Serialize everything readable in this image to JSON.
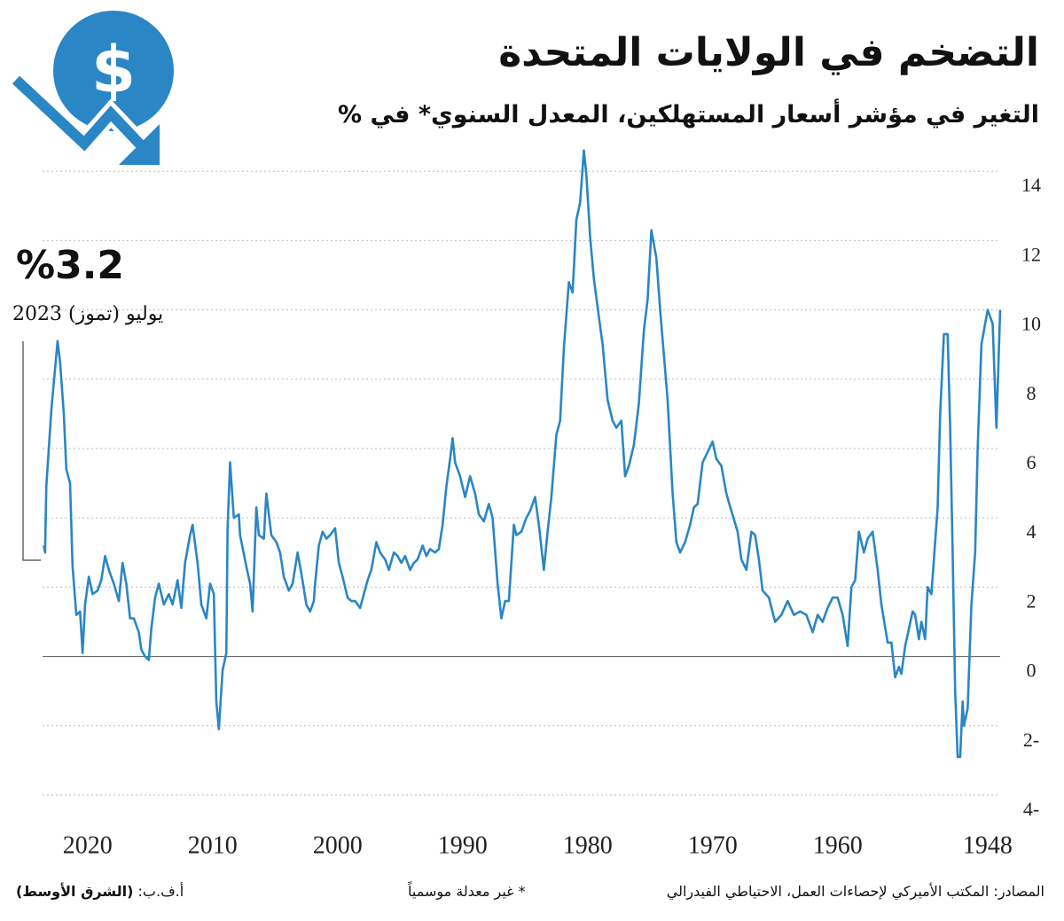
{
  "chart_data": {
    "type": "line",
    "title": "التضخم في الولايات المتحدة",
    "subtitle": "التغير في مؤشر أسعار المستهلكين، المعدل السنوي* في %",
    "icon": {
      "symbol": "$"
    },
    "annotation": {
      "value_text": "%3.2",
      "date_text": "يوليو (تموز) 2023"
    },
    "footer": {
      "sources": "المصادر: المكتب الأميركي لإحصاءات العمل، الاحتياطي الفيدرالي",
      "note": "* غير معدلة موسمياً",
      "credit": "أ.ف.ب:",
      "outlet": "(الشرق الأوسط)"
    },
    "x": [
      1947.0,
      1947.3,
      1947.6,
      1948.0,
      1948.5,
      1948.8,
      1949.0,
      1949.3,
      1949.6,
      1949.9,
      1950.0,
      1950.2,
      1950.4,
      1950.6,
      1950.8,
      1951.0,
      1951.2,
      1951.5,
      1951.8,
      1952.0,
      1952.5,
      1952.8,
      1953.0,
      1953.3,
      1953.5,
      1953.8,
      1954.0,
      1954.3,
      1954.6,
      1954.9,
      1955.1,
      1955.4,
      1955.7,
      1956.0,
      1956.5,
      1956.8,
      1957.2,
      1957.6,
      1957.9,
      1958.3,
      1958.6,
      1958.9,
      1959.2,
      1959.6,
      1960.0,
      1960.4,
      1960.8,
      1961.2,
      1961.6,
      1962.0,
      1962.5,
      1963.0,
      1963.5,
      1964.0,
      1964.5,
      1965.0,
      1965.5,
      1966.0,
      1966.3,
      1966.6,
      1966.9,
      1967.3,
      1967.7,
      1968.0,
      1968.5,
      1968.9,
      1969.3,
      1969.7,
      1970.0,
      1970.4,
      1970.8,
      1971.2,
      1971.5,
      1971.8,
      1972.2,
      1972.6,
      1972.9,
      1973.2,
      1973.6,
      1973.9,
      1974.2,
      1974.5,
      1974.9,
      1975.2,
      1975.5,
      1975.9,
      1976.3,
      1976.7,
      1977.0,
      1977.3,
      1977.7,
      1978.0,
      1978.4,
      1978.8,
      1979.1,
      1979.5,
      1979.8,
      1980.1,
      1980.3,
      1980.6,
      1980.9,
      1981.2,
      1981.5,
      1981.9,
      1982.2,
      1982.5,
      1982.9,
      1983.2,
      1983.5,
      1983.9,
      1984.2,
      1984.6,
      1984.9,
      1985.3,
      1985.7,
      1985.9,
      1986.3,
      1986.6,
      1986.9,
      1987.2,
      1987.6,
      1987.9,
      1988.3,
      1988.7,
      1989.0,
      1989.4,
      1989.8,
      1990.2,
      1990.6,
      1990.8,
      1991.0,
      1991.3,
      1991.6,
      1991.9,
      1992.2,
      1992.6,
      1992.9,
      1993.2,
      1993.6,
      1993.9,
      1994.2,
      1994.6,
      1994.9,
      1995.2,
      1995.5,
      1995.9,
      1996.2,
      1996.6,
      1996.9,
      1997.3,
      1997.6,
      1997.9,
      1998.2,
      1998.6,
      1998.9,
      1999.2,
      1999.6,
      1999.9,
      2000.2,
      2000.6,
      2000.9,
      2001.2,
      2001.5,
      2001.8,
      2001.9,
      2002.2,
      2002.5,
      2002.9,
      2003.2,
      2003.6,
      2003.9,
      2004.3,
      2004.6,
      2004.9,
      2005.3,
      2005.7,
      2005.9,
      2006.3,
      2006.5,
      2006.8,
      2007.0,
      2007.3,
      2007.8,
      2007.9,
      2008.3,
      2008.6,
      2008.8,
      2008.9,
      2009.2,
      2009.5,
      2009.7,
      2009.9,
      2010.2,
      2010.5,
      2010.9,
      2011.2,
      2011.6,
      2011.8,
      2012.2,
      2012.5,
      2012.8,
      2013.2,
      2013.5,
      2013.9,
      2014.3,
      2014.6,
      2014.9,
      2015.1,
      2015.4,
      2015.7,
      2015.9,
      2016.3,
      2016.6,
      2016.9,
      2017.2,
      2017.5,
      2017.9,
      2018.3,
      2018.6,
      2018.9,
      2019.2,
      2019.6,
      2019.9,
      2020.2,
      2020.4,
      2020.6,
      2020.9,
      2021.2,
      2021.4,
      2021.7,
      2021.9,
      2022.2,
      2022.4,
      2022.6,
      2022.9,
      2023.1,
      2023.3,
      2023.4,
      2023.5
    ],
    "series": [
      {
        "color": "#2a86c4",
        "values": [
          10.0,
          6.6,
          9.6,
          10.0,
          9.0,
          6.0,
          3.0,
          1.5,
          -1.5,
          -2.0,
          -1.3,
          -2.9,
          -2.9,
          -1.0,
          3.0,
          6.6,
          9.3,
          9.3,
          7.0,
          4.3,
          1.8,
          2.0,
          0.5,
          1.0,
          0.5,
          1.2,
          1.3,
          0.8,
          0.3,
          -0.5,
          -0.3,
          -0.6,
          0.4,
          0.4,
          1.5,
          2.5,
          3.6,
          3.4,
          3.0,
          3.6,
          2.2,
          2.0,
          0.3,
          1.2,
          1.7,
          1.7,
          1.4,
          1.0,
          1.2,
          0.7,
          1.2,
          1.3,
          1.2,
          1.6,
          1.2,
          1.0,
          1.7,
          1.9,
          2.8,
          3.5,
          3.6,
          2.5,
          2.8,
          3.6,
          4.2,
          4.7,
          5.5,
          5.7,
          6.2,
          5.9,
          5.6,
          4.4,
          4.3,
          3.8,
          3.3,
          3.0,
          3.3,
          4.7,
          7.4,
          8.7,
          10.0,
          11.5,
          12.3,
          10.3,
          9.4,
          7.3,
          6.1,
          5.5,
          5.2,
          6.8,
          6.6,
          6.8,
          7.4,
          9.0,
          9.8,
          10.9,
          12.1,
          13.9,
          14.6,
          13.1,
          12.6,
          10.5,
          10.8,
          8.9,
          6.8,
          6.4,
          4.6,
          3.6,
          2.5,
          3.8,
          4.6,
          4.2,
          4.0,
          3.6,
          3.5,
          3.8,
          1.6,
          1.6,
          1.1,
          2.1,
          4.0,
          4.4,
          3.9,
          4.1,
          4.7,
          5.2,
          4.6,
          5.2,
          5.6,
          6.3,
          5.7,
          4.9,
          3.8,
          3.1,
          3.0,
          3.1,
          2.9,
          3.2,
          2.8,
          2.7,
          2.5,
          2.9,
          2.7,
          2.9,
          3.0,
          2.5,
          2.8,
          3.0,
          3.3,
          2.5,
          2.2,
          1.8,
          1.4,
          1.6,
          1.6,
          1.7,
          2.3,
          2.7,
          3.7,
          3.5,
          3.4,
          3.6,
          3.2,
          2.1,
          1.6,
          1.3,
          1.5,
          2.4,
          3.0,
          2.1,
          1.9,
          2.3,
          3.0,
          3.3,
          3.5,
          4.7,
          3.4,
          3.5,
          4.3,
          1.3,
          2.1,
          2.6,
          3.5,
          4.1,
          4.0,
          5.6,
          3.7,
          0.1,
          -0.4,
          -2.1,
          -1.3,
          1.8,
          2.1,
          1.1,
          1.5,
          2.7,
          3.8,
          3.5,
          2.7,
          1.4,
          2.2,
          1.5,
          1.8,
          1.5,
          2.1,
          1.7,
          0.8,
          -0.1,
          0,
          0.2,
          0.7,
          1.1,
          1.1,
          2.1,
          2.7,
          1.6,
          2.1,
          2.5,
          2.9,
          2.2,
          1.9,
          1.8,
          2.3,
          1.5,
          0.1,
          1.3,
          1.2,
          2.6,
          5.0,
          5.4,
          7.0,
          8.5,
          9.1,
          8.3,
          7.1,
          6.0,
          4.9,
          3.0,
          3.2
        ]
      }
    ],
    "xlim": [
      1947,
      2023.6
    ],
    "xreverse": true,
    "xticks": [
      1948,
      1960,
      1970,
      1980,
      1990,
      2000,
      2010,
      2020
    ],
    "ylim": [
      -4,
      14.5
    ],
    "yticks": [
      {
        "value": -4,
        "label": "4-"
      },
      {
        "value": -2,
        "label": "2-"
      },
      0,
      2,
      4,
      6,
      8,
      10,
      12,
      14
    ],
    "grid": true
  }
}
